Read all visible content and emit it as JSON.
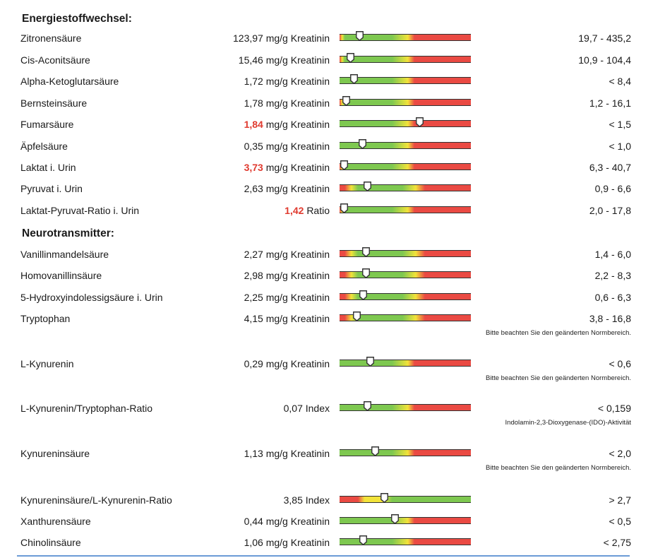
{
  "sections": [
    {
      "title": "Energiestoffwechsel:",
      "rows": [
        {
          "name": "Zitronensäure",
          "value": "123,97",
          "unit": "mg/g Kreatinin",
          "flag": false,
          "ref": "19,7 - 435,2",
          "scale": "normal-low",
          "marker": 0.15
        },
        {
          "name": "Cis-Aconitsäure",
          "value": "15,46",
          "unit": "mg/g Kreatinin",
          "flag": false,
          "ref": "10,9 - 104,4",
          "scale": "normal-low",
          "marker": 0.08
        },
        {
          "name": "Alpha-Ketoglutarsäure",
          "value": "1,72",
          "unit": "mg/g Kreatinin",
          "flag": false,
          "ref": "< 8,4",
          "scale": "upper",
          "marker": 0.11
        },
        {
          "name": "Bernsteinsäure",
          "value": "1,78",
          "unit": "mg/g Kreatinin",
          "flag": false,
          "ref": "1,2 - 16,1",
          "scale": "normal-low",
          "marker": 0.05
        },
        {
          "name": "Fumarsäure",
          "value": "1,84",
          "unit": "mg/g Kreatinin",
          "flag": true,
          "ref": "< 1,5",
          "scale": "upper",
          "marker": 0.61
        },
        {
          "name": "Äpfelsäure",
          "value": "0,35",
          "unit": "mg/g Kreatinin",
          "flag": false,
          "ref": "< 1,0",
          "scale": "upper",
          "marker": 0.17
        },
        {
          "name": "Laktat i. Urin",
          "value": "3,73",
          "unit": "mg/g Kreatinin",
          "flag": true,
          "ref": "6,3 - 40,7",
          "scale": "normal-low",
          "marker": 0.03
        },
        {
          "name": "Pyruvat i. Urin",
          "value": "2,63",
          "unit": "mg/g Kreatinin",
          "flag": false,
          "ref": "0,9 - 6,6",
          "scale": "normal",
          "marker": 0.21
        },
        {
          "name": "Laktat-Pyruvat-Ratio i. Urin",
          "value": "1,42",
          "unit": "Ratio",
          "flag": true,
          "ref": "2,0 - 17,8",
          "scale": "normal-low",
          "marker": 0.03
        }
      ]
    },
    {
      "title": "Neurotransmitter:",
      "rows": [
        {
          "name": "Vanillinmandelsäure",
          "value": "2,27",
          "unit": "mg/g Kreatinin",
          "flag": false,
          "ref": "1,4 - 6,0",
          "scale": "normal",
          "marker": 0.2,
          "note": ""
        },
        {
          "name": "Homovanillinsäure",
          "value": "2,98",
          "unit": "mg/g Kreatinin",
          "flag": false,
          "ref": "2,2 - 8,3",
          "scale": "normal",
          "marker": 0.2,
          "note": ""
        },
        {
          "name": "5-Hydroxyindolessigsäure i. Urin",
          "value": "2,25",
          "unit": "mg/g Kreatinin",
          "flag": false,
          "ref": "0,6 - 6,3",
          "scale": "normal",
          "marker": 0.18,
          "note": ""
        },
        {
          "name": "Tryptophan",
          "value": "4,15",
          "unit": "mg/g Kreatinin",
          "flag": false,
          "ref": "3,8 - 16,8",
          "scale": "normal",
          "marker": 0.13,
          "note": "Bitte beachten Sie den geänderten Normbereich."
        },
        {
          "name": "L-Kynurenin",
          "value": "0,29",
          "unit": "mg/g Kreatinin",
          "flag": false,
          "ref": "< 0,6",
          "scale": "upper",
          "marker": 0.23,
          "note": "Bitte beachten Sie den geänderten Normbereich."
        },
        {
          "name": "L-Kynurenin/Tryptophan-Ratio",
          "value": "0,07",
          "unit": "Index",
          "flag": false,
          "ref": "< 0,159",
          "scale": "upper",
          "marker": 0.21,
          "note": "Indolamin-2,3-Dioxygenase-(IDO)-Aktivität"
        },
        {
          "name": "Kynureninsäure",
          "value": "1,13",
          "unit": "mg/g Kreatinin",
          "flag": false,
          "ref": "< 2,0",
          "scale": "upper",
          "marker": 0.27,
          "note": "Bitte beachten Sie den geänderten Normbereich."
        },
        {
          "name": "Kynureninsäure/L-Kynurenin-Ratio",
          "value": "3,85",
          "unit": "Index",
          "flag": false,
          "ref": "> 2,7",
          "scale": "lower",
          "marker": 0.34,
          "note": ""
        },
        {
          "name": "Xanthurensäure",
          "value": "0,44",
          "unit": "mg/g Kreatinin",
          "flag": false,
          "ref": "< 0,5",
          "scale": "upper",
          "marker": 0.42,
          "note": ""
        },
        {
          "name": "Chinolinsäure",
          "value": "1,06",
          "unit": "mg/g Kreatinin",
          "flag": false,
          "ref": "< 2,75",
          "scale": "upper",
          "marker": 0.18,
          "note": ""
        }
      ]
    }
  ],
  "colors": {
    "green": "#7ec850",
    "yellow": "#f2e33a",
    "red": "#ea4a43",
    "flag": "#e03a2f"
  }
}
